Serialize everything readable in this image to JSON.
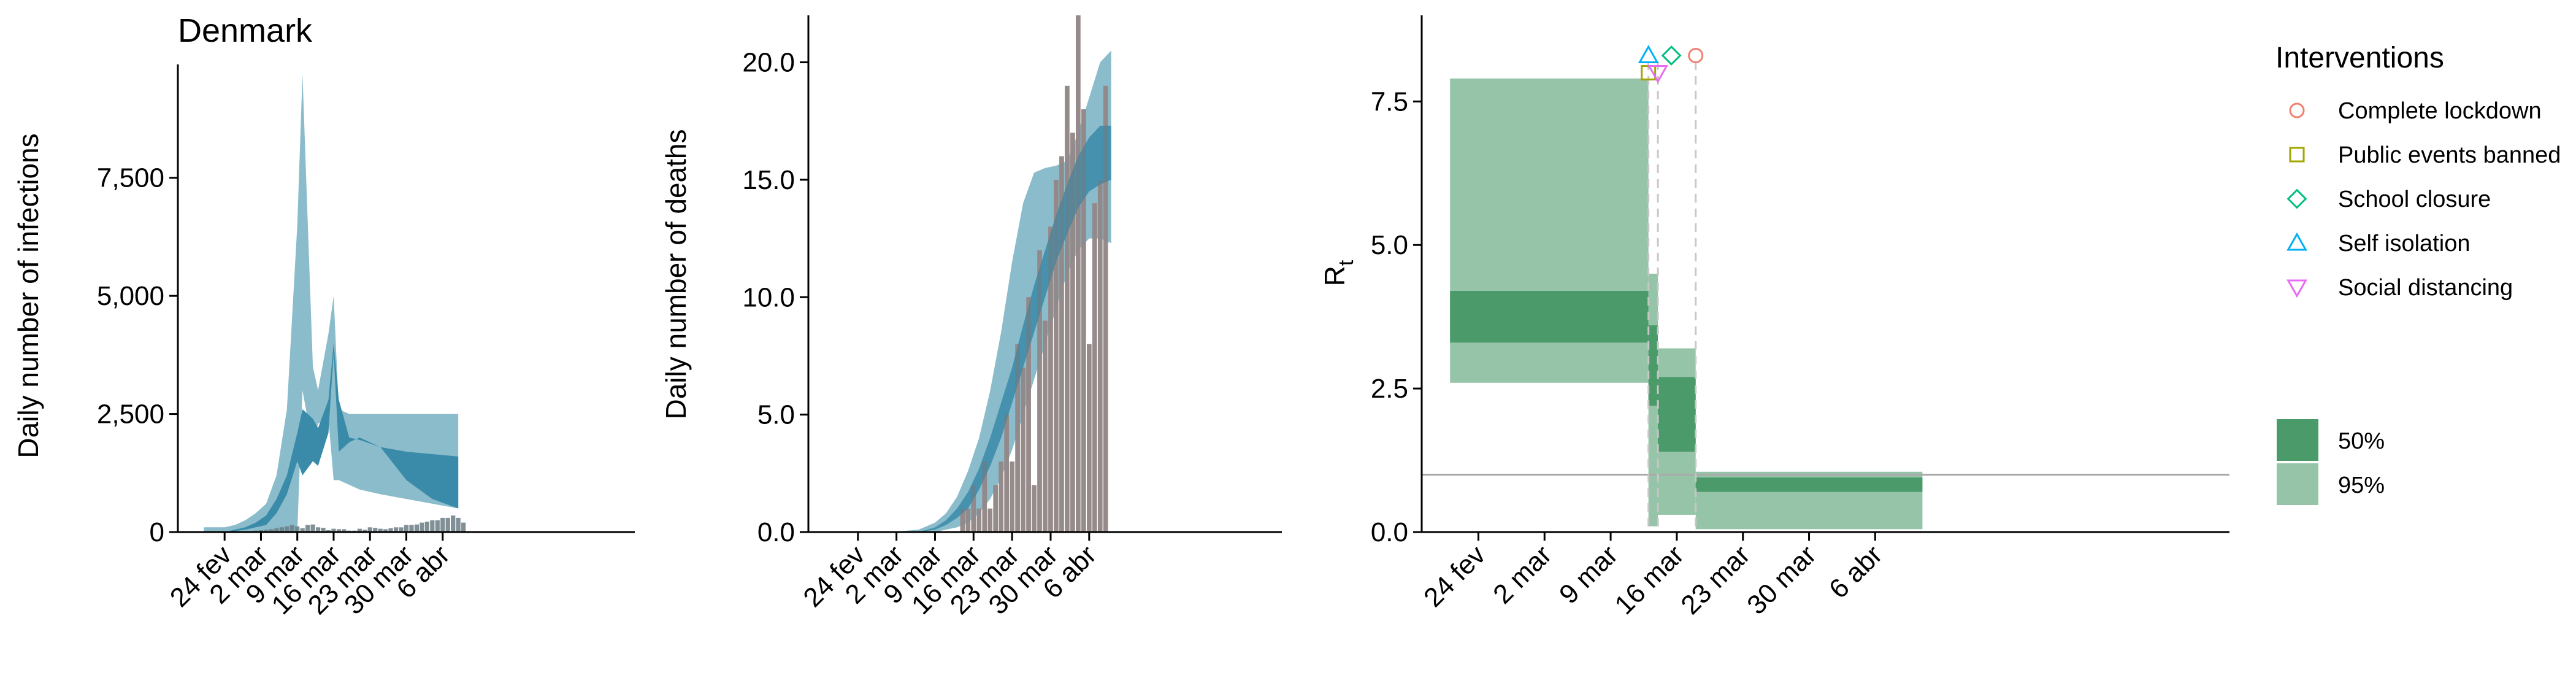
{
  "title": "Denmark",
  "colors": {
    "infections_95": "#8bbccb",
    "infections_50": "#3a8ba9",
    "deaths_95": "#8bbccb",
    "deaths_50": "#3a8ba9",
    "observed_deaths_bar": "#c4968f",
    "observed_bar": "#6b7d84",
    "rt_95": "#96c4a8",
    "rt_50": "#4b9a6a",
    "lockdown": "#f08070",
    "public_events": "#a3a500",
    "school_closure": "#00bf7d",
    "self_isolation": "#00b0f6",
    "social_distancing": "#e76bf3"
  },
  "chart_data": [
    {
      "id": "infections",
      "type": "area",
      "ylabel": "Daily number of infections",
      "xlabel": "",
      "x_ticks": [
        "24 fev",
        "2 mar",
        "9 mar",
        "16 mar",
        "23 mar",
        "30 mar",
        "6 abr"
      ],
      "y_ticks": [
        "0",
        "2,500",
        "5,000",
        "7,500"
      ],
      "ylim": [
        0,
        9900
      ],
      "x_dates": [
        "02-20",
        "02-22",
        "02-24",
        "02-26",
        "02-28",
        "03-01",
        "03-03",
        "03-05",
        "03-07",
        "03-09",
        "03-10",
        "03-12",
        "03-13",
        "03-15",
        "03-16",
        "03-17",
        "03-19",
        "03-21",
        "03-25",
        "03-30",
        "04-04",
        "04-09"
      ],
      "ci95_lower": [
        0,
        0,
        0,
        0,
        0,
        0,
        0,
        0,
        0,
        0,
        3000,
        1800,
        2300,
        2400,
        1100,
        1100,
        1000,
        900,
        800,
        700,
        600,
        500
      ],
      "ci95_upper": [
        100,
        100,
        100,
        150,
        250,
        400,
        600,
        1200,
        2600,
        6500,
        9700,
        3500,
        3000,
        4200,
        5000,
        2600,
        2500,
        2500,
        2500,
        2500,
        2500,
        2500
      ],
      "ci50_lower": [
        0,
        0,
        0,
        20,
        50,
        100,
        150,
        400,
        800,
        1500,
        1200,
        1500,
        1400,
        2100,
        3800,
        1700,
        1900,
        2000,
        1800,
        1100,
        700,
        500
      ],
      "ci50_upper": [
        0,
        0,
        0,
        50,
        100,
        200,
        350,
        700,
        1200,
        2100,
        2600,
        2400,
        2200,
        2800,
        4000,
        2800,
        2000,
        1950,
        1800,
        1700,
        1650,
        1600
      ],
      "observed": [
        {
          "date": "03-01",
          "value": 30
        },
        {
          "date": "03-02",
          "value": 40
        },
        {
          "date": "03-03",
          "value": 50
        },
        {
          "date": "03-04",
          "value": 60
        },
        {
          "date": "03-05",
          "value": 80
        },
        {
          "date": "03-06",
          "value": 100
        },
        {
          "date": "03-07",
          "value": 120
        },
        {
          "date": "03-08",
          "value": 150
        },
        {
          "date": "03-09",
          "value": 120
        },
        {
          "date": "03-10",
          "value": 80
        },
        {
          "date": "03-11",
          "value": 150
        },
        {
          "date": "03-12",
          "value": 160
        },
        {
          "date": "03-13",
          "value": 100
        },
        {
          "date": "03-14",
          "value": 90
        },
        {
          "date": "03-15",
          "value": 40
        },
        {
          "date": "03-16",
          "value": 70
        },
        {
          "date": "03-17",
          "value": 60
        },
        {
          "date": "03-18",
          "value": 60
        },
        {
          "date": "03-19",
          "value": 30
        },
        {
          "date": "03-20",
          "value": 30
        },
        {
          "date": "03-21",
          "value": 70
        },
        {
          "date": "03-22",
          "value": 50
        },
        {
          "date": "03-23",
          "value": 100
        },
        {
          "date": "03-24",
          "value": 90
        },
        {
          "date": "03-25",
          "value": 70
        },
        {
          "date": "03-26",
          "value": 60
        },
        {
          "date": "03-27",
          "value": 80
        },
        {
          "date": "03-28",
          "value": 100
        },
        {
          "date": "03-29",
          "value": 100
        },
        {
          "date": "03-30",
          "value": 150
        },
        {
          "date": "03-31",
          "value": 150
        },
        {
          "date": "04-01",
          "value": 160
        },
        {
          "date": "04-02",
          "value": 200
        },
        {
          "date": "04-03",
          "value": 220
        },
        {
          "date": "04-04",
          "value": 250
        },
        {
          "date": "04-05",
          "value": 250
        },
        {
          "date": "04-06",
          "value": 300
        },
        {
          "date": "04-07",
          "value": 300
        },
        {
          "date": "04-08",
          "value": 350
        },
        {
          "date": "04-09",
          "value": 300
        },
        {
          "date": "04-10",
          "value": 200
        }
      ]
    },
    {
      "id": "deaths",
      "type": "area",
      "ylabel": "Daily number of deaths",
      "xlabel": "",
      "x_ticks": [
        "24 fev",
        "2 mar",
        "9 mar",
        "16 mar",
        "23 mar",
        "30 mar",
        "6 abr"
      ],
      "y_ticks": [
        "0.0",
        "5.0",
        "10.0",
        "15.0",
        "20.0"
      ],
      "ylim": [
        0,
        22
      ],
      "x_dates": [
        "02-20",
        "03-01",
        "03-06",
        "03-09",
        "03-11",
        "03-13",
        "03-15",
        "03-17",
        "03-19",
        "03-21",
        "03-23",
        "03-25",
        "03-27",
        "03-29",
        "03-31",
        "04-02",
        "04-04",
        "04-06",
        "04-08",
        "04-10"
      ],
      "ci95_lower": [
        0,
        0,
        0,
        0,
        0.1,
        0.2,
        0.4,
        0.8,
        1.4,
        2.3,
        3.5,
        5,
        6.5,
        8,
        9.5,
        11,
        12,
        12.5,
        12.5,
        12.3
      ],
      "ci95_upper": [
        0,
        0,
        0.1,
        0.4,
        0.8,
        1.5,
        2.6,
        4,
        6,
        8.5,
        11.5,
        14,
        15.3,
        15.5,
        15.6,
        15.8,
        17,
        18.5,
        20,
        20.5
      ],
      "ci50_lower": [
        0,
        0,
        0,
        0.1,
        0.3,
        0.6,
        1,
        1.8,
        2.8,
        4,
        5.5,
        7,
        8.5,
        10,
        11.5,
        12.7,
        13.8,
        14.5,
        14.8,
        15
      ],
      "ci50_upper": [
        0,
        0,
        0,
        0.2,
        0.5,
        1,
        1.7,
        2.7,
        4,
        5.5,
        7,
        8.8,
        10.5,
        12,
        13.5,
        14.8,
        16,
        16.8,
        17.3,
        17.3
      ],
      "observed": [
        {
          "date": "03-14",
          "value": 1
        },
        {
          "date": "03-15",
          "value": 1
        },
        {
          "date": "03-16",
          "value": 2
        },
        {
          "date": "03-17",
          "value": 1
        },
        {
          "date": "03-18",
          "value": 3
        },
        {
          "date": "03-19",
          "value": 1
        },
        {
          "date": "03-20",
          "value": 2
        },
        {
          "date": "03-21",
          "value": 3
        },
        {
          "date": "03-22",
          "value": 5
        },
        {
          "date": "03-23",
          "value": 3
        },
        {
          "date": "03-24",
          "value": 8
        },
        {
          "date": "03-25",
          "value": 7
        },
        {
          "date": "03-26",
          "value": 10
        },
        {
          "date": "03-27",
          "value": 2
        },
        {
          "date": "03-28",
          "value": 12
        },
        {
          "date": "03-29",
          "value": 9
        },
        {
          "date": "03-30",
          "value": 13
        },
        {
          "date": "03-31",
          "value": 15
        },
        {
          "date": "04-01",
          "value": 16
        },
        {
          "date": "04-02",
          "value": 19
        },
        {
          "date": "04-03",
          "value": 17
        },
        {
          "date": "04-04",
          "value": 22
        },
        {
          "date": "04-05",
          "value": 18
        },
        {
          "date": "04-06",
          "value": 8
        },
        {
          "date": "04-07",
          "value": 14
        },
        {
          "date": "04-08",
          "value": 15
        },
        {
          "date": "04-09",
          "value": 19
        }
      ]
    },
    {
      "id": "rt",
      "type": "step",
      "ylabel": "R",
      "ylabel_subscript": "t",
      "xlabel": "",
      "x_ticks": [
        "24 fev",
        "2 mar",
        "9 mar",
        "16 mar",
        "23 mar",
        "30 mar",
        "6 abr"
      ],
      "y_ticks": [
        "0.0",
        "2.5",
        "5.0",
        "7.5"
      ],
      "ylim": [
        0,
        9
      ],
      "reference_line": 1.0,
      "segments": [
        {
          "start": "02-21",
          "end": "03-13",
          "ci95": [
            2.6,
            7.9
          ],
          "ci50": [
            3.3,
            4.2
          ]
        },
        {
          "start": "03-13",
          "end": "03-14",
          "ci95": [
            0.1,
            4.5
          ],
          "ci50": [
            2.2,
            3.6
          ]
        },
        {
          "start": "03-14",
          "end": "03-18",
          "ci95": [
            0.3,
            3.2
          ],
          "ci50": [
            1.4,
            2.7
          ]
        },
        {
          "start": "03-18",
          "end": "04-11",
          "ci95": [
            0.05,
            1.05
          ],
          "ci50": [
            0.7,
            0.95
          ]
        }
      ],
      "interventions": [
        {
          "name": "Complete lockdown",
          "date": "03-18",
          "shape": "circle"
        },
        {
          "name": "Public events banned",
          "date": "03-13",
          "shape": "square"
        },
        {
          "name": "School closure",
          "date": "03-14",
          "shape": "diamond"
        },
        {
          "name": "Self isolation",
          "date": "03-13",
          "shape": "triangle-up"
        },
        {
          "name": "Social distancing",
          "date": "03-14",
          "shape": "triangle-down"
        }
      ]
    }
  ],
  "legend": {
    "interventions_title": "Interventions",
    "items": [
      "Complete lockdown",
      "Public events banned",
      "School closure",
      "Self isolation",
      "Social distancing"
    ],
    "bands": [
      "50%",
      "95%"
    ]
  }
}
